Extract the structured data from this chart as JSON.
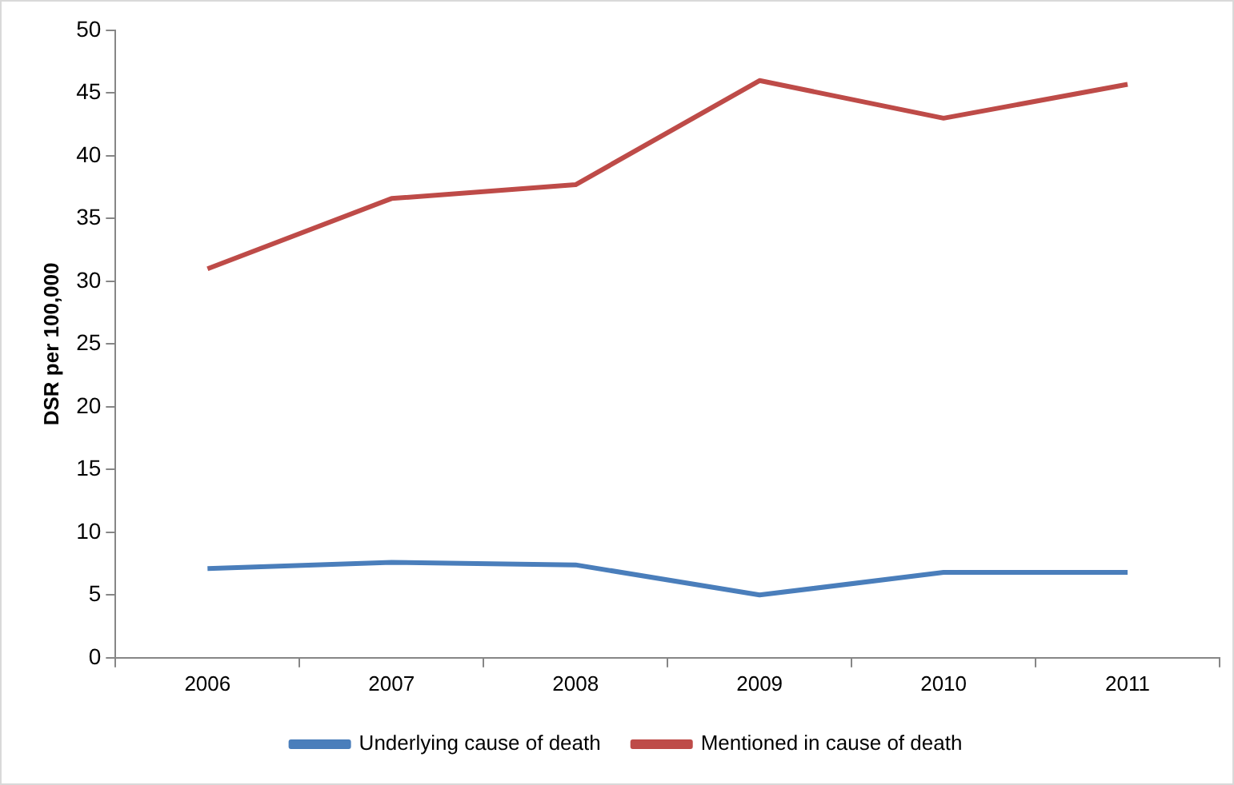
{
  "chart_data": {
    "type": "line",
    "ylabel": "DSR per 100,000",
    "categories": [
      "2006",
      "2007",
      "2008",
      "2009",
      "2010",
      "2011"
    ],
    "series": [
      {
        "name": "Underlying cause of death",
        "color": "#4a7ebb",
        "values": [
          7.1,
          7.6,
          7.4,
          5.0,
          6.8,
          6.8
        ]
      },
      {
        "name": "Mentioned in cause of death",
        "color": "#be4b48",
        "values": [
          31.0,
          36.6,
          37.7,
          46.0,
          43.0,
          45.7
        ]
      }
    ],
    "ylim": [
      0,
      50
    ],
    "yticks": [
      0,
      5,
      10,
      15,
      20,
      25,
      30,
      35,
      40,
      45,
      50
    ],
    "grid": false,
    "legend": "bottom",
    "marker": "none",
    "line_style": "solid"
  }
}
